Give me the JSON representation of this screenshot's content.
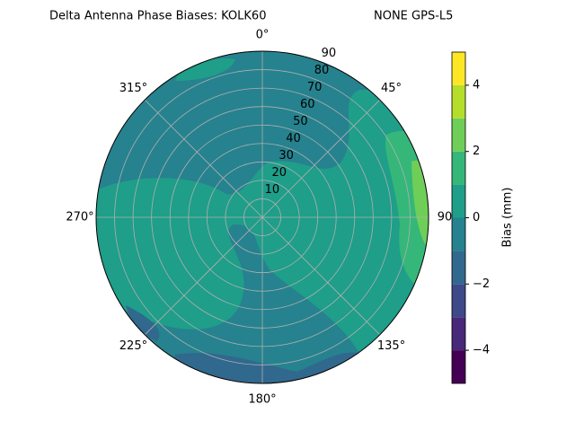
{
  "chart_data": {
    "type": "polar_contour",
    "title": "Delta Antenna Phase Biases: KOLK60",
    "subtitle": "NONE GPS-L5",
    "thetaticks": [
      {
        "value": 0,
        "label": "0°"
      },
      {
        "value": 45,
        "label": "45°"
      },
      {
        "value": 90,
        "label": "90"
      },
      {
        "value": 135,
        "label": "135°"
      },
      {
        "value": 180,
        "label": "180°"
      },
      {
        "value": 225,
        "label": "225°"
      },
      {
        "value": 270,
        "label": "270°"
      },
      {
        "value": 315,
        "label": "315°"
      }
    ],
    "rlim": [
      0,
      90
    ],
    "rticks": [
      10,
      20,
      30,
      40,
      50,
      60,
      70,
      80,
      90
    ],
    "levels": [
      -5,
      -4,
      -3,
      -2,
      -1,
      0,
      1,
      2,
      3,
      4,
      5
    ],
    "colors": [
      "#440154",
      "#482878",
      "#3e4989",
      "#31688e",
      "#26828e",
      "#1f9e89",
      "#35b779",
      "#6ece58",
      "#b5de2b",
      "#fde725"
    ],
    "colorbar_label": "Bias (mm)",
    "colorbar_ticks": [
      {
        "value": -4,
        "label": "−4"
      },
      {
        "value": -2,
        "label": "−2"
      },
      0,
      2,
      4
    ],
    "grid": true
  }
}
